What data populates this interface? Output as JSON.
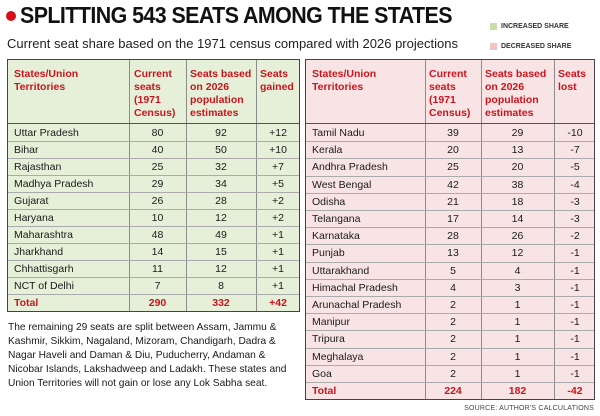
{
  "title": "SPLITTING 543 SEATS AMONG THE STATES",
  "subtitle": "Current seat share based on the 1971 census compared with 2026 projections",
  "legend": {
    "increased": "INCREASED SHARE",
    "decreased": "DECREASED SHARE",
    "increased_color": "#e6f0d8",
    "decreased_color": "#f9e4e5"
  },
  "left_table": {
    "headers": {
      "name": "States/Union Territories",
      "current": "Current seats (1971 Census)",
      "projected": "Seats based on 2026 population estimates",
      "change": "Seats gained"
    },
    "rows": [
      {
        "name": "Uttar Pradesh",
        "current": "80",
        "projected": "92",
        "change": "+12"
      },
      {
        "name": "Bihar",
        "current": "40",
        "projected": "50",
        "change": "+10"
      },
      {
        "name": "Rajasthan",
        "current": "25",
        "projected": "32",
        "change": "+7"
      },
      {
        "name": "Madhya Pradesh",
        "current": "29",
        "projected": "34",
        "change": "+5"
      },
      {
        "name": "Gujarat",
        "current": "26",
        "projected": "28",
        "change": "+2"
      },
      {
        "name": "Haryana",
        "current": "10",
        "projected": "12",
        "change": "+2"
      },
      {
        "name": "Maharashtra",
        "current": "48",
        "projected": "49",
        "change": "+1"
      },
      {
        "name": "Jharkhand",
        "current": "14",
        "projected": "15",
        "change": "+1"
      },
      {
        "name": "Chhattisgarh",
        "current": "11",
        "projected": "12",
        "change": "+1"
      },
      {
        "name": "NCT of Delhi",
        "current": "7",
        "projected": "8",
        "change": "+1"
      }
    ],
    "total": {
      "name": "Total",
      "current": "290",
      "projected": "332",
      "change": "+42"
    }
  },
  "right_table": {
    "headers": {
      "name": "States/Union Territories",
      "current": "Current seats (1971 Census)",
      "projected": "Seats based on 2026 population estimates",
      "change": "Seats lost"
    },
    "rows": [
      {
        "name": "Tamil Nadu",
        "current": "39",
        "projected": "29",
        "change": "-10"
      },
      {
        "name": "Kerala",
        "current": "20",
        "projected": "13",
        "change": "-7"
      },
      {
        "name": "Andhra Pradesh",
        "current": "25",
        "projected": "20",
        "change": "-5"
      },
      {
        "name": "West Bengal",
        "current": "42",
        "projected": "38",
        "change": "-4"
      },
      {
        "name": "Odisha",
        "current": "21",
        "projected": "18",
        "change": "-3"
      },
      {
        "name": "Telangana",
        "current": "17",
        "projected": "14",
        "change": "-3"
      },
      {
        "name": "Karnataka",
        "current": "28",
        "projected": "26",
        "change": "-2"
      },
      {
        "name": "Punjab",
        "current": "13",
        "projected": "12",
        "change": "-1"
      },
      {
        "name": "Uttarakhand",
        "current": "5",
        "projected": "4",
        "change": "-1"
      },
      {
        "name": "Himachal Pradesh",
        "current": "4",
        "projected": "3",
        "change": "-1"
      },
      {
        "name": "Arunachal Pradesh",
        "current": "2",
        "projected": "1",
        "change": "-1"
      },
      {
        "name": "Manipur",
        "current": "2",
        "projected": "1",
        "change": "-1"
      },
      {
        "name": "Tripura",
        "current": "2",
        "projected": "1",
        "change": "-1"
      },
      {
        "name": "Meghalaya",
        "current": "2",
        "projected": "1",
        "change": "-1"
      },
      {
        "name": "Goa",
        "current": "2",
        "projected": "1",
        "change": "-1"
      }
    ],
    "total": {
      "name": "Total",
      "current": "224",
      "projected": "182",
      "change": "-42"
    }
  },
  "note": "The remaining 29 seats are split between Assam, Jammu & Kashmir, Sikkim, Nagaland, Mizoram, Chandigarh, Dadra & Nagar Haveli and Daman & Diu, Puducherry, Andaman & Nicobar Islands, Lakshadweep and Ladakh. These states and Union Territories will not gain or lose any Lok Sabha seat.",
  "source": "SOURCE: AUTHOR'S CALCULATIONS"
}
